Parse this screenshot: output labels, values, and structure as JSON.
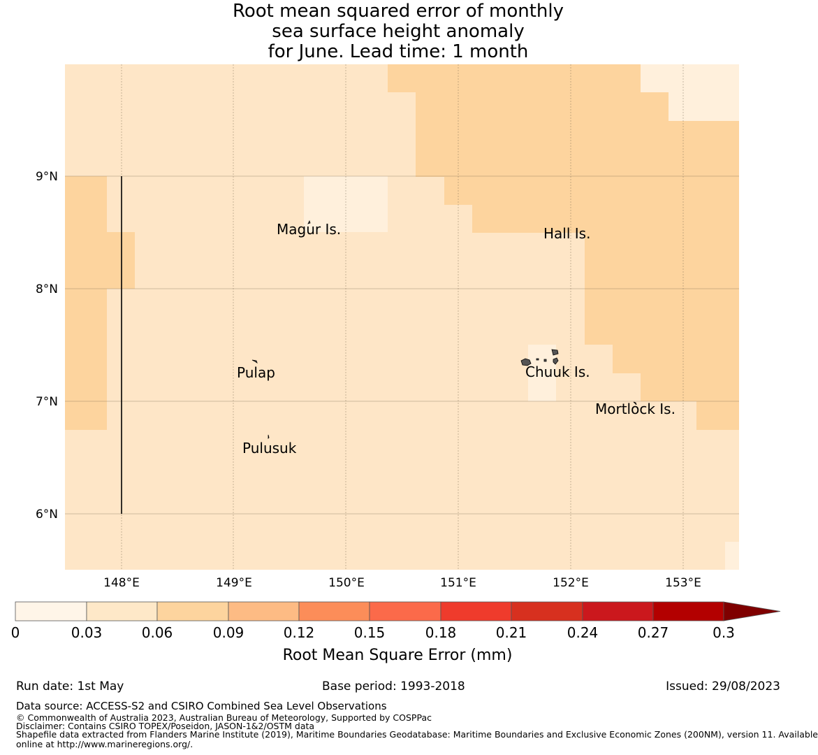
{
  "title_lines": [
    "Root mean squared error of monthly",
    "sea surface height anomaly",
    "for June. Lead time: 1 month"
  ],
  "map": {
    "lat_labels": [
      "9°N",
      "8°N",
      "7°N",
      "6°N"
    ],
    "lon_labels": [
      "148°E",
      "149°E",
      "150°E",
      "151°E",
      "152°E",
      "153°E"
    ],
    "place_labels": [
      "Magur Is.",
      "Hall Is.",
      "Pulap",
      "Chuuk Is.",
      "Mortlock Is.",
      "Pulusuk"
    ],
    "colors": {
      "band_1": "#fff0dc",
      "band_2": "#fee6c7",
      "band_3": "#fdd49e"
    }
  },
  "colorbar": {
    "ticks": [
      "0",
      "0.03",
      "0.06",
      "0.09",
      "0.12",
      "0.15",
      "0.18",
      "0.21",
      "0.24",
      "0.27",
      "0.3"
    ],
    "colors": [
      "#fff5e8",
      "#fee8c8",
      "#fdd49e",
      "#fdbb84",
      "#fc8d59",
      "#fb6a4a",
      "#ef3b2c",
      "#d7301f",
      "#cb181d",
      "#b30000",
      "#7f0000"
    ],
    "label": "Root Mean Square Error (mm)"
  },
  "footer": {
    "run_date": "Run date: 1st May",
    "base_period": "Base period: 1993-2018",
    "issued": "Issued: 29/08/2023",
    "data_source": "Data source: ACCESS-S2 and CSIRO Combined Sea Level Observations",
    "copyright": "© Commonwealth of Australia 2023, Australian Bureau of Meteorology, Supported by COSPPac",
    "disclaimer": "Disclaimer: Contains CSIRO TOPEX/Poseidon, JASON-1&2/OSTM data",
    "shapefile_line1": "Shapefile data extracted from Flanders Marine Institute (2019), Maritime Boundaries Geodatabase: Maritime Boundaries and Exclusive Economic Zones (200NM), version 11. Available",
    "shapefile_line2": "online at http://www.marineregions.org/."
  }
}
